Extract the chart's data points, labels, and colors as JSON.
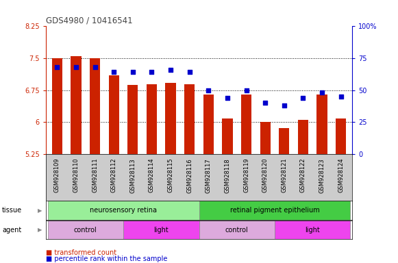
{
  "title": "GDS4980 / 10416541",
  "samples": [
    "GSM928109",
    "GSM928110",
    "GSM928111",
    "GSM928112",
    "GSM928113",
    "GSM928114",
    "GSM928115",
    "GSM928116",
    "GSM928117",
    "GSM928118",
    "GSM928119",
    "GSM928120",
    "GSM928121",
    "GSM928122",
    "GSM928123",
    "GSM928124"
  ],
  "bar_values": [
    7.5,
    7.55,
    7.5,
    7.1,
    6.87,
    6.88,
    6.92,
    6.88,
    6.65,
    6.08,
    6.64,
    6.0,
    5.85,
    6.05,
    6.65,
    6.08
  ],
  "bar_base": 5.25,
  "blue_percentiles": [
    68,
    68,
    68,
    64,
    64,
    64,
    66,
    64,
    50,
    44,
    50,
    40,
    38,
    44,
    48,
    45
  ],
  "ylim_left": [
    5.25,
    8.25
  ],
  "ylim_right": [
    0,
    100
  ],
  "yticks_left": [
    5.25,
    6.0,
    6.75,
    7.5,
    8.25
  ],
  "yticks_right": [
    0,
    25,
    50,
    75,
    100
  ],
  "ytick_labels_left": [
    "5.25",
    "6",
    "6.75",
    "7.5",
    "8.25"
  ],
  "ytick_labels_right": [
    "0",
    "25",
    "50",
    "75",
    "100%"
  ],
  "bar_color": "#cc2200",
  "blue_color": "#0000cc",
  "tissue_groups": [
    {
      "text": "neurosensory retina",
      "start": 0,
      "end": 7,
      "color": "#99ee99"
    },
    {
      "text": "retinal pigment epithelium",
      "start": 8,
      "end": 15,
      "color": "#44cc44"
    }
  ],
  "agent_groups": [
    {
      "text": "control",
      "start": 0,
      "end": 3,
      "color": "#ddaadd"
    },
    {
      "text": "light",
      "start": 4,
      "end": 7,
      "color": "#ee44ee"
    },
    {
      "text": "control",
      "start": 8,
      "end": 11,
      "color": "#ddaadd"
    },
    {
      "text": "light",
      "start": 12,
      "end": 15,
      "color": "#ee44ee"
    }
  ],
  "left_tick_color": "#cc2200",
  "right_tick_color": "#0000cc",
  "title_color": "#444444",
  "xlabels_bg": "#cccccc",
  "grid_yticks": [
    6.0,
    6.75,
    7.5
  ]
}
